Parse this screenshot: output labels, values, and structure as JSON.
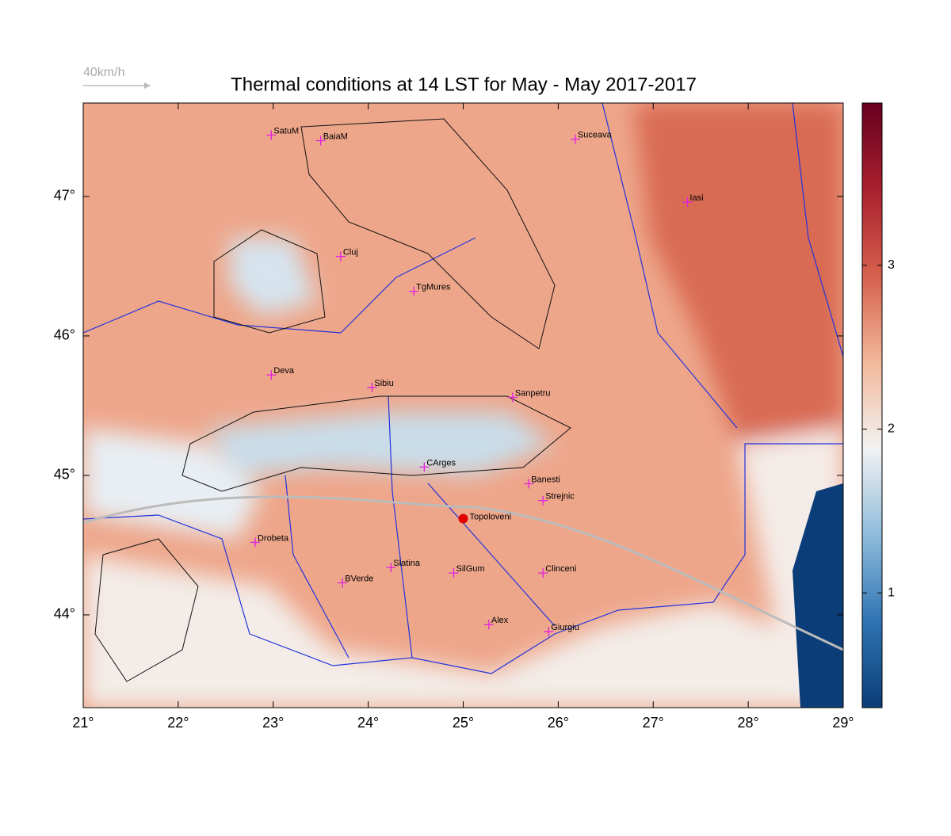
{
  "chart_data": {
    "type": "map",
    "title": "Thermal conditions at 14 LST for May - May  2017-2017",
    "wind_scale_label": "40km/h",
    "xlim": [
      21,
      29
    ],
    "ylim": [
      43.335,
      47.67
    ],
    "xticks": [
      {
        "value": 21,
        "label": "21°"
      },
      {
        "value": 22,
        "label": "22°"
      },
      {
        "value": 23,
        "label": "23°"
      },
      {
        "value": 24,
        "label": "24°"
      },
      {
        "value": 25,
        "label": "25°"
      },
      {
        "value": 26,
        "label": "26°"
      },
      {
        "value": 27,
        "label": "27°"
      },
      {
        "value": 28,
        "label": "28°"
      },
      {
        "value": 29,
        "label": "29°"
      }
    ],
    "yticks": [
      {
        "value": 44,
        "label": "44°"
      },
      {
        "value": 45,
        "label": "45°"
      },
      {
        "value": 46,
        "label": "46°"
      },
      {
        "value": 47,
        "label": "47°"
      }
    ],
    "colorbar": {
      "lim": [
        0.3,
        3.99
      ],
      "ticks": [
        1,
        2,
        3
      ],
      "colors": [
        "#0b3d78",
        "#2f74b3",
        "#8fbcdb",
        "#f2f2f2",
        "#f2b89a",
        "#d6604d",
        "#a8202e",
        "#67001f"
      ]
    },
    "cities": [
      {
        "name": "SatuM",
        "lon": 22.98,
        "lat": 47.44
      },
      {
        "name": "BaiaM",
        "lon": 23.5,
        "lat": 47.4
      },
      {
        "name": "Suceava",
        "lon": 26.18,
        "lat": 47.41
      },
      {
        "name": "Iasi",
        "lon": 27.36,
        "lat": 46.96
      },
      {
        "name": "Cluj",
        "lon": 23.71,
        "lat": 46.57
      },
      {
        "name": "TgMures",
        "lon": 24.48,
        "lat": 46.32
      },
      {
        "name": "Deva",
        "lon": 22.98,
        "lat": 45.72
      },
      {
        "name": "Sibiu",
        "lon": 24.04,
        "lat": 45.63
      },
      {
        "name": "Sanpetru",
        "lon": 25.52,
        "lat": 45.56
      },
      {
        "name": "CArges",
        "lon": 24.59,
        "lat": 45.06
      },
      {
        "name": "Banesti",
        "lon": 25.69,
        "lat": 44.94
      },
      {
        "name": "Strejnic",
        "lon": 25.84,
        "lat": 44.82
      },
      {
        "name": "Drobeta",
        "lon": 22.81,
        "lat": 44.52
      },
      {
        "name": "Slatina",
        "lon": 24.24,
        "lat": 44.34
      },
      {
        "name": "SilGum",
        "lon": 24.9,
        "lat": 44.3
      },
      {
        "name": "Clinceni",
        "lon": 25.84,
        "lat": 44.3
      },
      {
        "name": "BVerde",
        "lon": 23.73,
        "lat": 44.23
      },
      {
        "name": "Alex",
        "lon": 25.27,
        "lat": 43.93
      },
      {
        "name": "Giurgiu",
        "lon": 25.9,
        "lat": 43.88
      }
    ],
    "highlight": {
      "name": "Topoloveni",
      "lon": 25.0,
      "lat": 44.69
    }
  }
}
